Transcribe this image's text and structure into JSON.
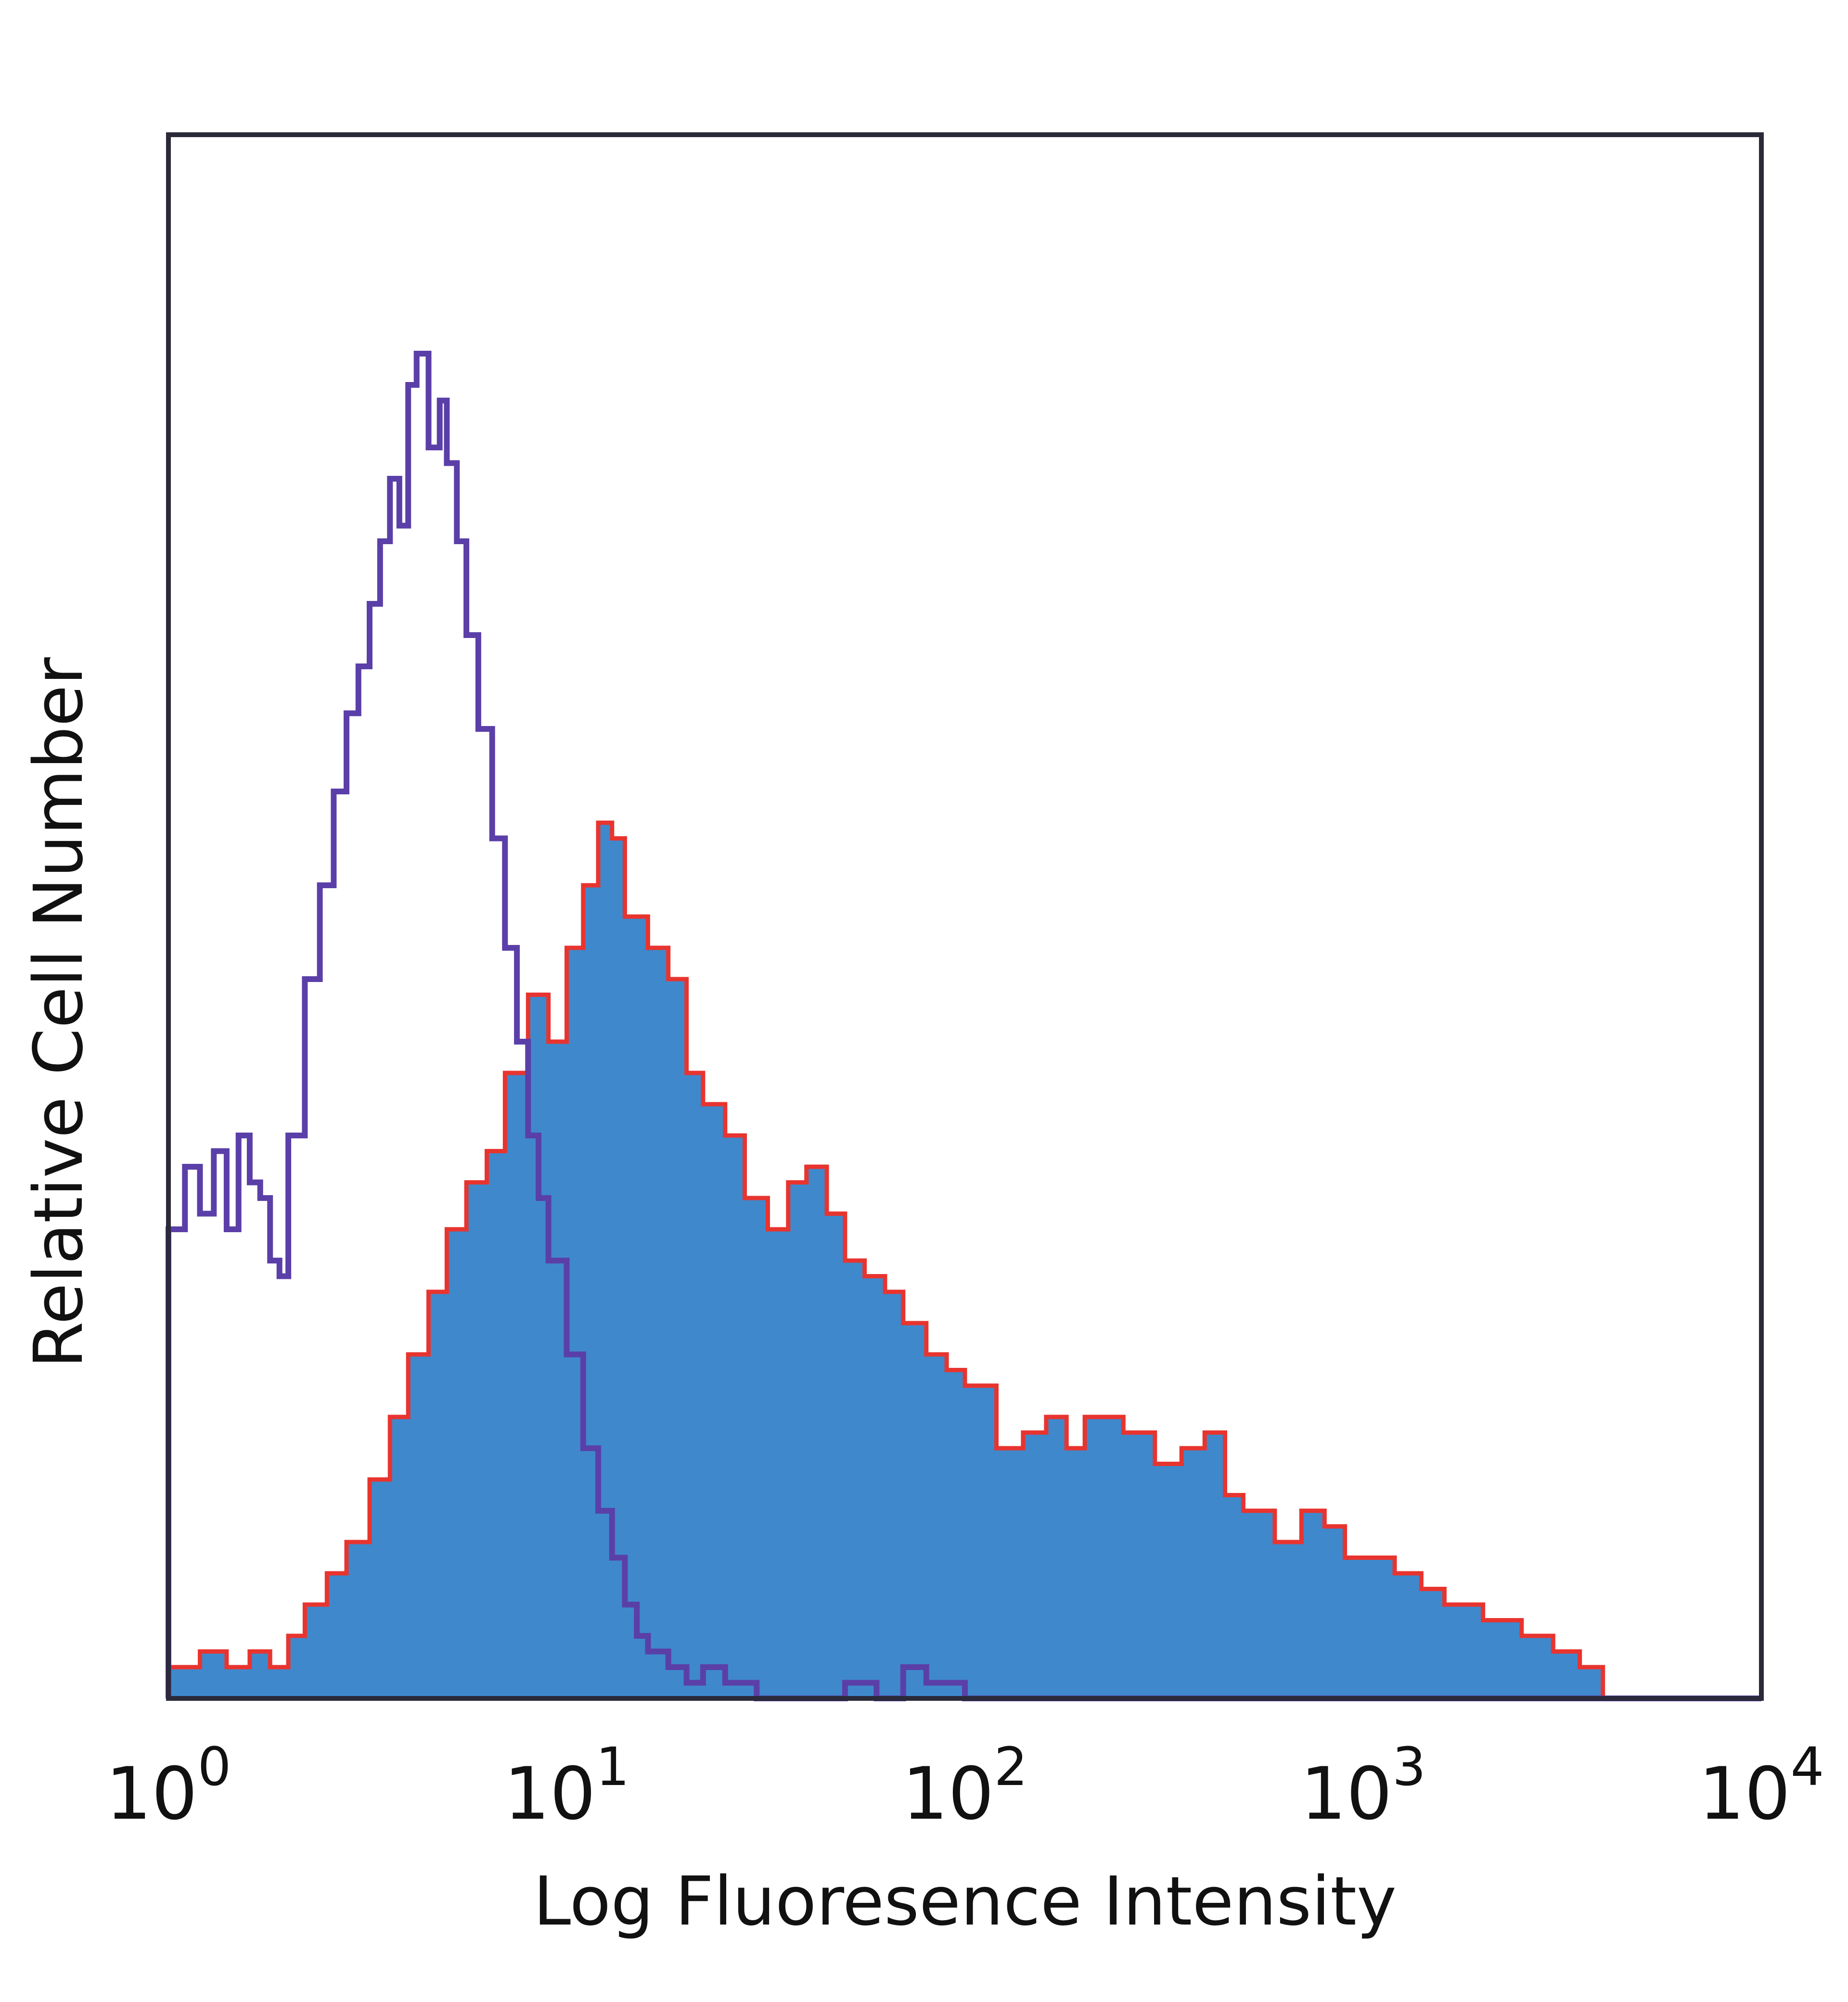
{
  "chart_data": {
    "type": "area",
    "title": "",
    "xlabel": "Log Fluoresence Intensity",
    "ylabel": "Relative Cell Number",
    "x_scale": "log",
    "xlim": [
      1,
      10000
    ],
    "ylim": [
      0,
      100
    ],
    "grid": false,
    "legend": "none",
    "x_ticks": [
      {
        "base": "10",
        "exp": "0"
      },
      {
        "base": "10",
        "exp": "1"
      },
      {
        "base": "10",
        "exp": "2"
      },
      {
        "base": "10",
        "exp": "3"
      },
      {
        "base": "10",
        "exp": "4"
      }
    ],
    "series": [
      {
        "style": "filled",
        "fill_color": "#3f88cc",
        "edge_color": "#e8342f",
        "x": [
          1.0,
          1.2,
          1.4,
          1.6,
          1.8,
          2.0,
          2.2,
          2.5,
          2.8,
          3.2,
          3.6,
          4.0,
          4.5,
          5.0,
          5.6,
          6.3,
          7.0,
          8.0,
          9.0,
          10.0,
          11.0,
          12.0,
          13.0,
          14.0,
          16.0,
          18.0,
          20.0,
          22.0,
          25.0,
          28.0,
          32.0,
          36.0,
          40.0,
          45.0,
          50.0,
          56.0,
          63.0,
          70.0,
          80.0,
          90.0,
          100.0,
          120.0,
          140.0,
          160.0,
          180.0,
          200.0,
          250.0,
          300.0,
          350.0,
          400.0,
          450.0,
          500.0,
          600.0,
          700.0,
          800.0,
          900.0,
          1000.0,
          1200.0,
          1400.0,
          1600.0,
          1800.0,
          2000.0,
          2500.0,
          3000.0,
          3500.0,
          4000.0
        ],
        "y": [
          2,
          3,
          2,
          3,
          2,
          4,
          6,
          8,
          10,
          14,
          18,
          22,
          26,
          30,
          33,
          35,
          40,
          45,
          42,
          48,
          52,
          56,
          55,
          50,
          48,
          46,
          40,
          38,
          36,
          32,
          30,
          33,
          34,
          31,
          28,
          27,
          26,
          24,
          22,
          21,
          20,
          16,
          17,
          18,
          16,
          18,
          17,
          15,
          16,
          17,
          13,
          12,
          10,
          12,
          11,
          9,
          9,
          8,
          7,
          6,
          6,
          5,
          4,
          3,
          2,
          0
        ]
      },
      {
        "style": "outline",
        "line_color": "#5b3fa8",
        "x": [
          1.0,
          1.1,
          1.2,
          1.3,
          1.4,
          1.5,
          1.6,
          1.7,
          1.8,
          1.9,
          2.0,
          2.2,
          2.4,
          2.6,
          2.8,
          3.0,
          3.2,
          3.4,
          3.6,
          3.8,
          4.0,
          4.2,
          4.5,
          4.8,
          5.0,
          5.3,
          5.6,
          6.0,
          6.5,
          7.0,
          7.5,
          8.0,
          8.5,
          9.0,
          10.0,
          11.0,
          12.0,
          13.0,
          14.0,
          15.0,
          16.0,
          18.0,
          20.0,
          22.0,
          25.0,
          30.0,
          40.0,
          50.0,
          60.0,
          70.0,
          80.0,
          100.0,
          200.0,
          1000.0,
          10000.0
        ],
        "y": [
          30,
          34,
          31,
          35,
          30,
          36,
          33,
          32,
          28,
          27,
          36,
          46,
          52,
          58,
          63,
          66,
          70,
          74,
          78,
          75,
          84,
          86,
          80,
          83,
          79,
          74,
          68,
          62,
          55,
          48,
          42,
          36,
          32,
          28,
          22,
          16,
          12,
          9,
          6,
          4,
          3,
          2,
          1,
          2,
          1,
          0,
          0,
          1,
          0,
          2,
          1,
          0,
          0,
          0,
          0
        ]
      }
    ]
  }
}
